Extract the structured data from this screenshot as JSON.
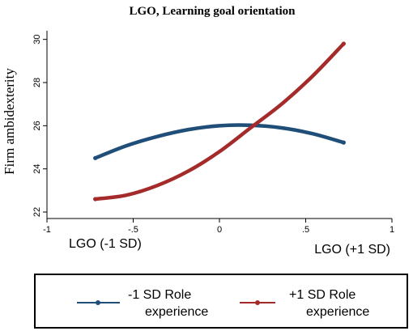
{
  "chart_data": {
    "type": "line",
    "title": "LGO, Learning goal orientation",
    "xlabel": "",
    "ylabel": "Firm ambidexterity",
    "x_ticks": [
      "-1",
      "-.5",
      "0",
      ".5",
      "1"
    ],
    "x_tick_values": [
      -1,
      -0.5,
      0,
      0.5,
      1
    ],
    "y_ticks": [
      "22",
      "24",
      "26",
      "28",
      "30"
    ],
    "y_tick_values": [
      22,
      24,
      26,
      28,
      30
    ],
    "xlim": [
      -1,
      1
    ],
    "ylim": [
      21.7,
      30.4
    ],
    "grid": false,
    "x_annotations": [
      {
        "text": "LGO (-1 SD)",
        "x": -0.72
      },
      {
        "text": "LGO (+1 SD)",
        "x": 0.72
      }
    ],
    "legend_position": "bottom",
    "series": [
      {
        "name": "-1 SD Role experience",
        "legend_lines": [
          "-1 SD Role",
          "experience"
        ],
        "color": "#1f4e79",
        "x": [
          -0.72,
          -0.54,
          -0.36,
          -0.18,
          0.0,
          0.18,
          0.36,
          0.54,
          0.72
        ],
        "y": [
          24.5,
          25.07,
          25.5,
          25.82,
          26.0,
          26.02,
          25.9,
          25.63,
          25.22
        ]
      },
      {
        "name": "+1 SD Role experience",
        "legend_lines": [
          "+1 SD Role",
          "experience"
        ],
        "color": "#a52a2a",
        "x": [
          -0.72,
          -0.54,
          -0.36,
          -0.18,
          0.0,
          0.18,
          0.36,
          0.54,
          0.72
        ],
        "y": [
          22.6,
          22.78,
          23.23,
          23.9,
          24.8,
          25.9,
          27.0,
          28.3,
          29.8
        ]
      }
    ]
  }
}
